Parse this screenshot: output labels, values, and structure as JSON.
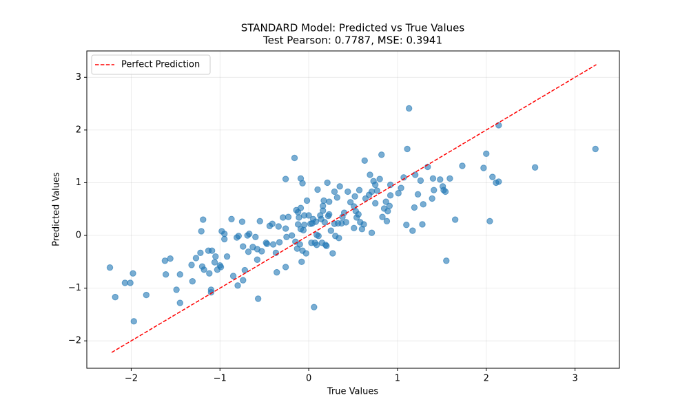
{
  "chart_data": {
    "type": "scatter",
    "title": "STANDARD Model: Predicted vs True Values",
    "subtitle": "Test Pearson: 0.7787, MSE: 0.3941",
    "x_label": "True Values",
    "y_label": "Predicted Values",
    "xlim": [
      -2.5,
      3.5
    ],
    "ylim": [
      -2.52,
      3.5
    ],
    "xticks": [
      {
        "value": -2,
        "label": "−2"
      },
      {
        "value": -1,
        "label": "−1"
      },
      0,
      1,
      2,
      3
    ],
    "yticks": [
      {
        "value": -2,
        "label": "−2"
      },
      {
        "value": -1,
        "label": "−1"
      },
      0,
      1,
      2,
      3
    ],
    "grid": true,
    "legend": "upper left",
    "color": "#1f77b4",
    "alpha": 0.6,
    "x": [
      -2.24,
      -2.18,
      -2.07,
      -2.01,
      -1.98,
      -1.97,
      -1.83,
      -1.62,
      -1.61,
      -1.56,
      -1.49,
      -1.45,
      -1.45,
      -1.32,
      -1.31,
      -1.27,
      -1.22,
      -1.21,
      -1.2,
      -1.19,
      -1.18,
      -1.13,
      -1.12,
      -1.1,
      -1.1,
      -1.09,
      -1.06,
      -1.05,
      -1.03,
      -1.0,
      -0.99,
      -0.98,
      -0.95,
      -0.95,
      -0.92,
      -0.87,
      -0.85,
      -0.81,
      -0.8,
      -0.79,
      -0.75,
      -0.74,
      -0.74,
      -0.72,
      -0.69,
      -0.68,
      -0.67,
      -0.63,
      -0.6,
      -0.58,
      -0.58,
      -0.57,
      -0.55,
      -0.53,
      -0.48,
      -0.47,
      -0.44,
      -0.41,
      -0.4,
      -0.37,
      -0.36,
      -0.34,
      -0.33,
      -0.29,
      -0.26,
      -0.26,
      -0.26,
      -0.25,
      -0.23,
      -0.19,
      -0.16,
      -0.15,
      -0.14,
      -0.13,
      -0.12,
      -0.12,
      -0.11,
      -0.1,
      -0.09,
      -0.09,
      -0.09,
      -0.08,
      -0.07,
      -0.07,
      -0.06,
      -0.05,
      -0.05,
      -0.03,
      -0.02,
      0.0,
      0.02,
      0.03,
      0.04,
      0.05,
      0.06,
      0.07,
      0.08,
      0.09,
      0.09,
      0.1,
      0.11,
      0.13,
      0.14,
      0.15,
      0.16,
      0.16,
      0.17,
      0.18,
      0.19,
      0.2,
      0.21,
      0.22,
      0.23,
      0.23,
      0.25,
      0.27,
      0.29,
      0.29,
      0.3,
      0.32,
      0.33,
      0.34,
      0.35,
      0.37,
      0.38,
      0.4,
      0.42,
      0.44,
      0.47,
      0.51,
      0.51,
      0.52,
      0.53,
      0.54,
      0.56,
      0.57,
      0.58,
      0.6,
      0.62,
      0.63,
      0.64,
      0.68,
      0.69,
      0.71,
      0.71,
      0.73,
      0.75,
      0.75,
      0.77,
      0.8,
      0.82,
      0.83,
      0.85,
      0.87,
      0.88,
      0.89,
      0.91,
      0.92,
      0.92,
      1.01,
      1.04,
      1.07,
      1.1,
      1.11,
      1.13,
      1.17,
      1.19,
      1.2,
      1.23,
      1.26,
      1.28,
      1.29,
      1.34,
      1.39,
      1.4,
      1.41,
      1.48,
      1.51,
      1.52,
      1.54,
      1.55,
      1.59,
      1.65,
      1.73,
      1.97,
      2.0,
      2.04,
      2.07,
      2.11,
      2.14,
      2.14,
      2.55,
      3.23
    ],
    "y": [
      -0.61,
      -1.17,
      -0.9,
      -0.9,
      -0.72,
      -1.63,
      -1.13,
      -0.48,
      -0.74,
      -0.44,
      -1.03,
      -1.28,
      -0.74,
      -0.56,
      -0.87,
      -0.43,
      -0.33,
      0.08,
      -0.59,
      0.3,
      -0.65,
      -0.29,
      -0.72,
      -1.03,
      -1.08,
      -0.29,
      -0.51,
      -0.4,
      -0.65,
      -0.57,
      -0.6,
      0.08,
      0.03,
      -0.07,
      -0.4,
      0.31,
      -0.77,
      -0.04,
      -0.95,
      -0.01,
      0.26,
      -0.21,
      -0.85,
      -0.66,
      0.0,
      -0.31,
      0.03,
      -0.22,
      -0.03,
      -0.26,
      -0.46,
      -1.2,
      0.27,
      -0.3,
      -0.14,
      -0.16,
      0.18,
      0.22,
      -0.17,
      -0.33,
      -0.7,
      0.17,
      -0.13,
      0.34,
      0.13,
      -0.6,
      1.07,
      -0.03,
      0.35,
      0.0,
      1.47,
      -0.12,
      0.48,
      -0.25,
      0.21,
      0.44,
      0.34,
      -0.17,
      0.12,
      0.52,
      1.08,
      -0.5,
      0.99,
      -0.29,
      0.1,
      0.38,
      0.2,
      -0.34,
      0.66,
      0.38,
      0.22,
      -0.14,
      0.23,
      0.31,
      -1.36,
      -0.14,
      0.26,
      -0.18,
      0.01,
      0.87,
      -0.01,
      0.38,
      0.31,
      -0.14,
      0.47,
      0.56,
      0.66,
      0.25,
      -0.18,
      -0.2,
      1.0,
      0.37,
      0.4,
      0.64,
      0.09,
      -0.34,
      0.22,
      0.83,
      -0.01,
      0.72,
      0.23,
      -0.05,
      0.93,
      0.23,
      0.35,
      0.43,
      0.25,
      0.83,
      0.63,
      0.14,
      0.55,
      0.74,
      0.46,
      0.34,
      0.4,
      0.86,
      0.25,
      0.12,
      0.21,
      1.42,
      0.7,
      0.77,
      1.15,
      0.05,
      0.83,
      1.03,
      0.96,
      0.61,
      0.85,
      1.07,
      1.53,
      0.35,
      0.51,
      0.64,
      0.27,
      0.46,
      0.56,
      0.96,
      0.76,
      0.8,
      0.9,
      1.1,
      0.2,
      1.64,
      2.41,
      0.09,
      0.53,
      1.15,
      0.78,
      1.04,
      0.21,
      0.59,
      1.3,
      0.7,
      1.08,
      0.86,
      1.06,
      0.93,
      0.86,
      0.83,
      -0.48,
      1.08,
      0.3,
      1.32,
      1.28,
      1.55,
      0.27,
      1.11,
      1.0,
      1.02,
      2.09,
      1.29,
      1.64
    ],
    "reference_line": {
      "name": "Perfect Prediction",
      "color": "#ff0000",
      "style": "dashed",
      "x": [
        -2.22,
        3.24
      ],
      "y": [
        -2.22,
        3.24
      ]
    }
  }
}
